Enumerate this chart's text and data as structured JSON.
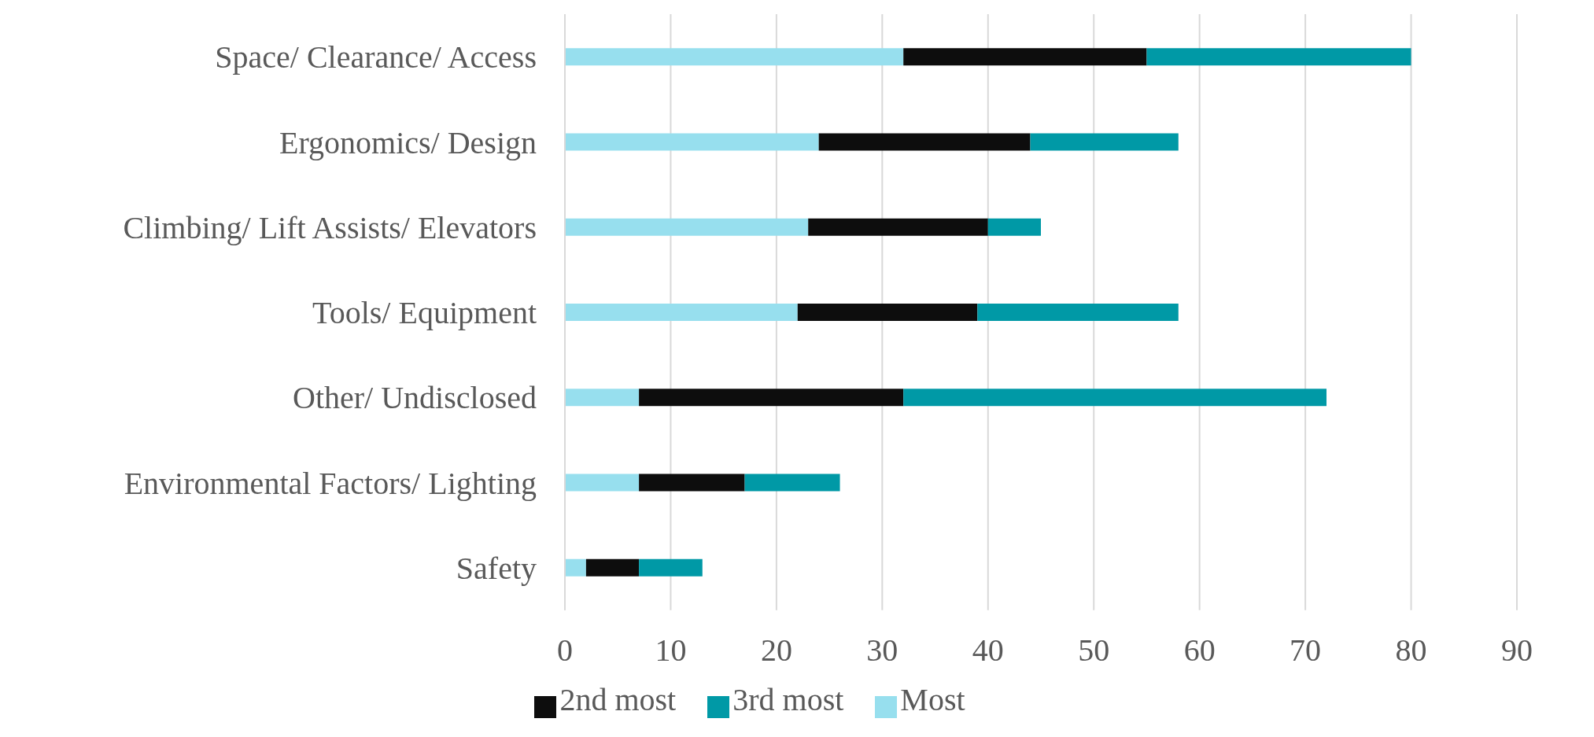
{
  "chart_data": {
    "type": "bar",
    "orientation": "horizontal",
    "stacked": true,
    "categories": [
      "Space/ Clearance/ Access",
      "Ergonomics/ Design",
      "Climbing/ Lift Assists/ Elevators",
      "Tools/ Equipment",
      "Other/ Undisclosed",
      "Environmental Factors/ Lighting",
      "Safety"
    ],
    "series": [
      {
        "name": "Most",
        "color": "#97dfee",
        "values": [
          32,
          24,
          23,
          22,
          7,
          7,
          2
        ]
      },
      {
        "name": "2nd most",
        "color": "#0d0d0d",
        "values": [
          23,
          20,
          17,
          17,
          25,
          10,
          5
        ]
      },
      {
        "name": "3rd most",
        "color": "#0099a6",
        "values": [
          25,
          14,
          5,
          19,
          40,
          9,
          6
        ]
      }
    ],
    "xlim": [
      0,
      90
    ],
    "xticks": [
      0,
      10,
      20,
      30,
      40,
      50,
      60,
      70,
      80,
      90
    ],
    "grid": "x",
    "legend": "bottom"
  }
}
